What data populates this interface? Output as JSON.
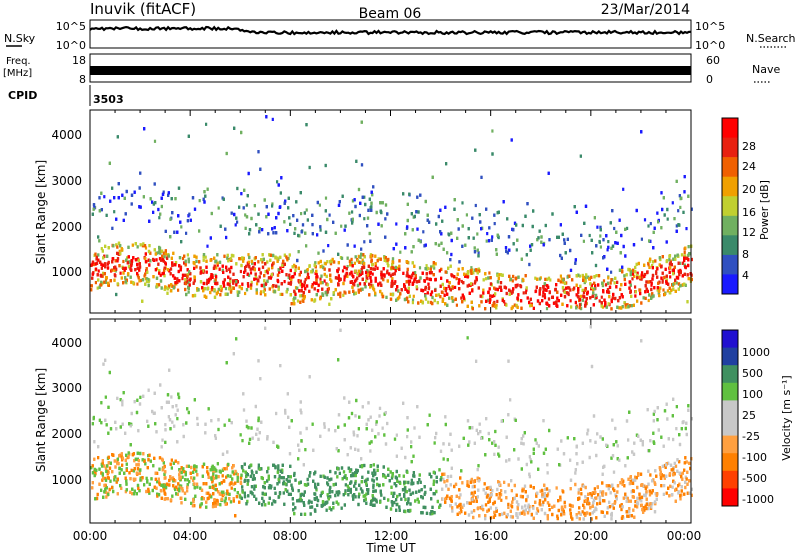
{
  "header": {
    "station": "Inuvik (fitACF)",
    "beam": "Beam 06",
    "date": "23/Mar/2014"
  },
  "side_labels": {
    "nsky": "N.Sky",
    "nsearch": "N.Search",
    "freq_line1": "Freq.",
    "freq_line2": "[MHz]",
    "nave": "Nave",
    "cpid": "CPID"
  },
  "cpid_value": "3503",
  "colors": {
    "power_scale": [
      "#1a1aff",
      "#3050c0",
      "#3a8a6a",
      "#70b060",
      "#c0d030",
      "#f0a000",
      "#f06000",
      "#e82010",
      "#ff0000"
    ],
    "velocity_scale": [
      "#ff0000",
      "#ff4000",
      "#ff8000",
      "#ffa040",
      "#c8c8c8",
      "#c8c8c8",
      "#60c040",
      "#409060",
      "#2040a0",
      "#2010d0"
    ]
  },
  "chart_data": [
    {
      "type": "line",
      "panel": "noise",
      "left_axis": {
        "label": "N.Sky",
        "ticks": [
          "10^5",
          "10^0"
        ]
      },
      "right_axis": {
        "label": "N.Search",
        "ticks": [
          "10^5",
          "10^0"
        ]
      }
    },
    {
      "type": "line",
      "panel": "frequency",
      "left_axis": {
        "label": "Freq. [MHz]",
        "ticks": [
          "18",
          "8"
        ]
      },
      "right_axis": {
        "label": "Nave",
        "ticks": [
          "60",
          "0"
        ]
      }
    },
    {
      "type": "heatmap",
      "panel": "power",
      "ylabel": "Slant Range [km]",
      "y_ticks": [
        "4000",
        "3000",
        "2000",
        "1000"
      ],
      "ylim": [
        180,
        4600
      ],
      "colorbar": {
        "label": "Power [dB]",
        "ticks": [
          "28",
          "24",
          "20",
          "16",
          "12",
          "8",
          "4"
        ],
        "range": [
          0,
          30
        ]
      }
    },
    {
      "type": "heatmap",
      "panel": "velocity",
      "ylabel": "Slant Range [km]",
      "y_ticks": [
        "4000",
        "3000",
        "2000",
        "1000"
      ],
      "ylim": [
        180,
        4600
      ],
      "colorbar": {
        "label": "Velocity [m s⁻¹]",
        "ticks": [
          "1000",
          "500",
          "100",
          "25",
          "-25",
          "-100",
          "-500",
          "-1000"
        ]
      }
    }
  ],
  "x_axis": {
    "label": "Time UT",
    "ticks": [
      "00:00",
      "04:00",
      "08:00",
      "12:00",
      "16:00",
      "20:00",
      "00:00"
    ],
    "range_hours": [
      0,
      24
    ]
  }
}
